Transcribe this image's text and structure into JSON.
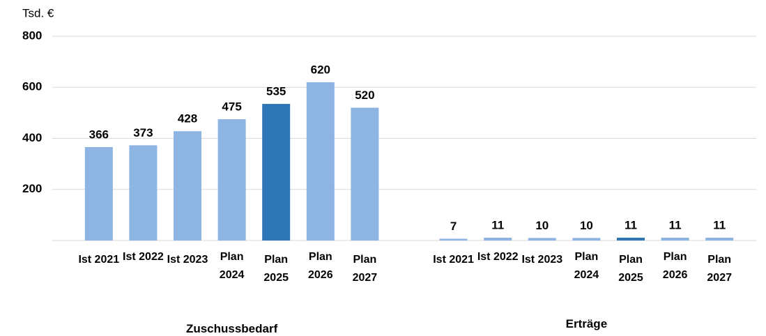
{
  "chart_data": {
    "type": "bar",
    "y_label": "Tsd. €",
    "ylim": [
      0,
      800
    ],
    "yticks": [
      200,
      400,
      600,
      800
    ],
    "grid": true,
    "groups": [
      {
        "name": "Zuschussbedarf",
        "categories": [
          "Ist 2021",
          "Ist 2022",
          "Ist 2023",
          "Plan 2024",
          "Plan 2025",
          "Plan 2026",
          "Plan 2027"
        ],
        "values": [
          366,
          373,
          428,
          475,
          535,
          620,
          520
        ],
        "colors": [
          "#8db4e2",
          "#8db4e2",
          "#8db4e2",
          "#8db4e2",
          "#2e75b6",
          "#8db4e2",
          "#8db4e2"
        ]
      },
      {
        "name": "Erträge",
        "categories": [
          "Ist 2021",
          "Ist 2022",
          "Ist 2023",
          "Plan 2024",
          "Plan 2025",
          "Plan 2026",
          "Plan 2027"
        ],
        "values": [
          7,
          11,
          10,
          10,
          11,
          11,
          11
        ],
        "colors": [
          "#8db4e2",
          "#8db4e2",
          "#8db4e2",
          "#8db4e2",
          "#2e75b6",
          "#8db4e2",
          "#8db4e2"
        ]
      }
    ]
  }
}
